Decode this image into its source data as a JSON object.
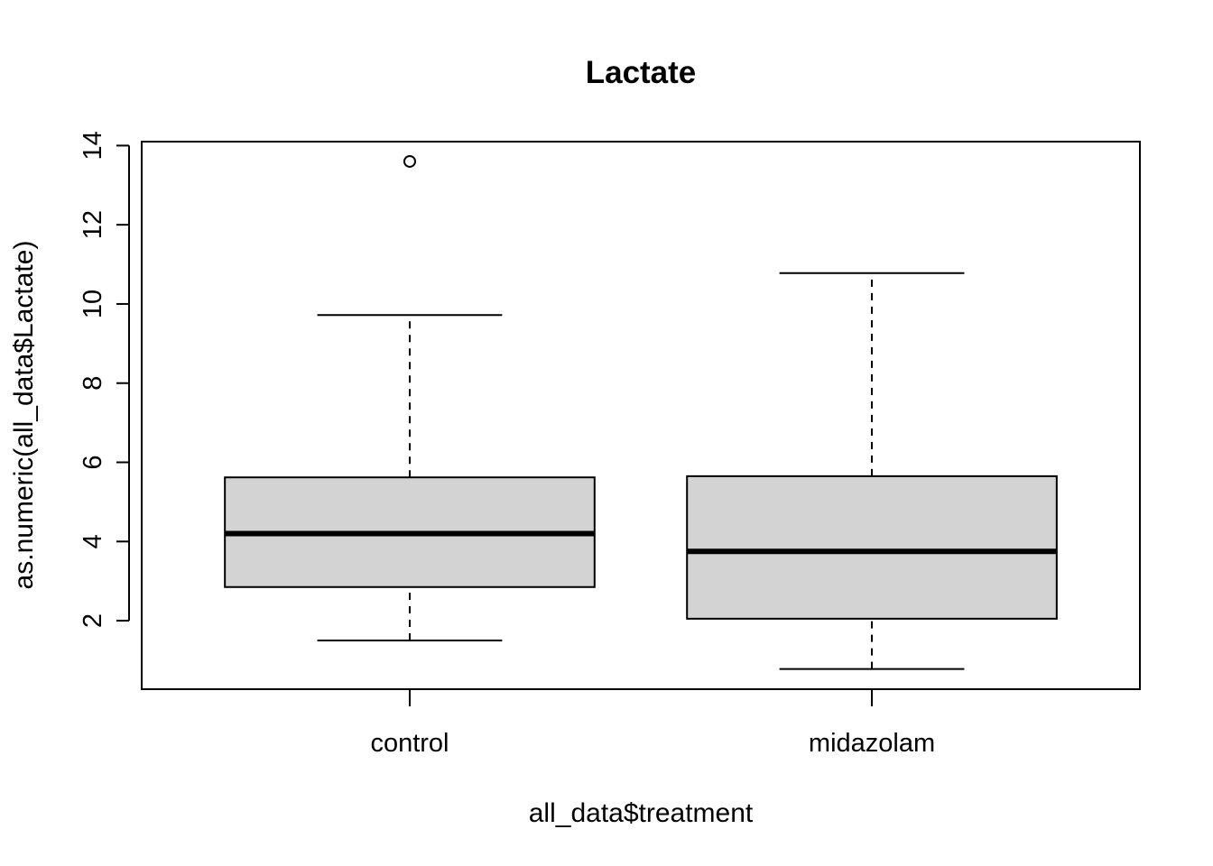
{
  "chart_data": {
    "type": "boxplot",
    "title": "Lactate",
    "xlabel": "all_data$treatment",
    "ylabel": "as.numeric(all_data$Lactate)",
    "categories": [
      "control",
      "midazolam"
    ],
    "ylim": [
      0.27,
      14.1
    ],
    "yticks": [
      2,
      4,
      6,
      8,
      10,
      12,
      14
    ],
    "ytick_labels": [
      "2",
      "4",
      "6",
      "8",
      "10",
      "12",
      "14"
    ],
    "boxes": [
      {
        "category": "control",
        "whisker_low": 1.5,
        "q1": 2.85,
        "median": 4.2,
        "q3": 5.62,
        "whisker_high": 9.72,
        "outliers": [
          13.6
        ]
      },
      {
        "category": "midazolam",
        "whisker_low": 0.78,
        "q1": 2.05,
        "median": 3.75,
        "q3": 5.65,
        "whisker_high": 10.78,
        "outliers": []
      }
    ],
    "box_fill": "#d3d3d3",
    "grid": false,
    "legend": "none"
  }
}
